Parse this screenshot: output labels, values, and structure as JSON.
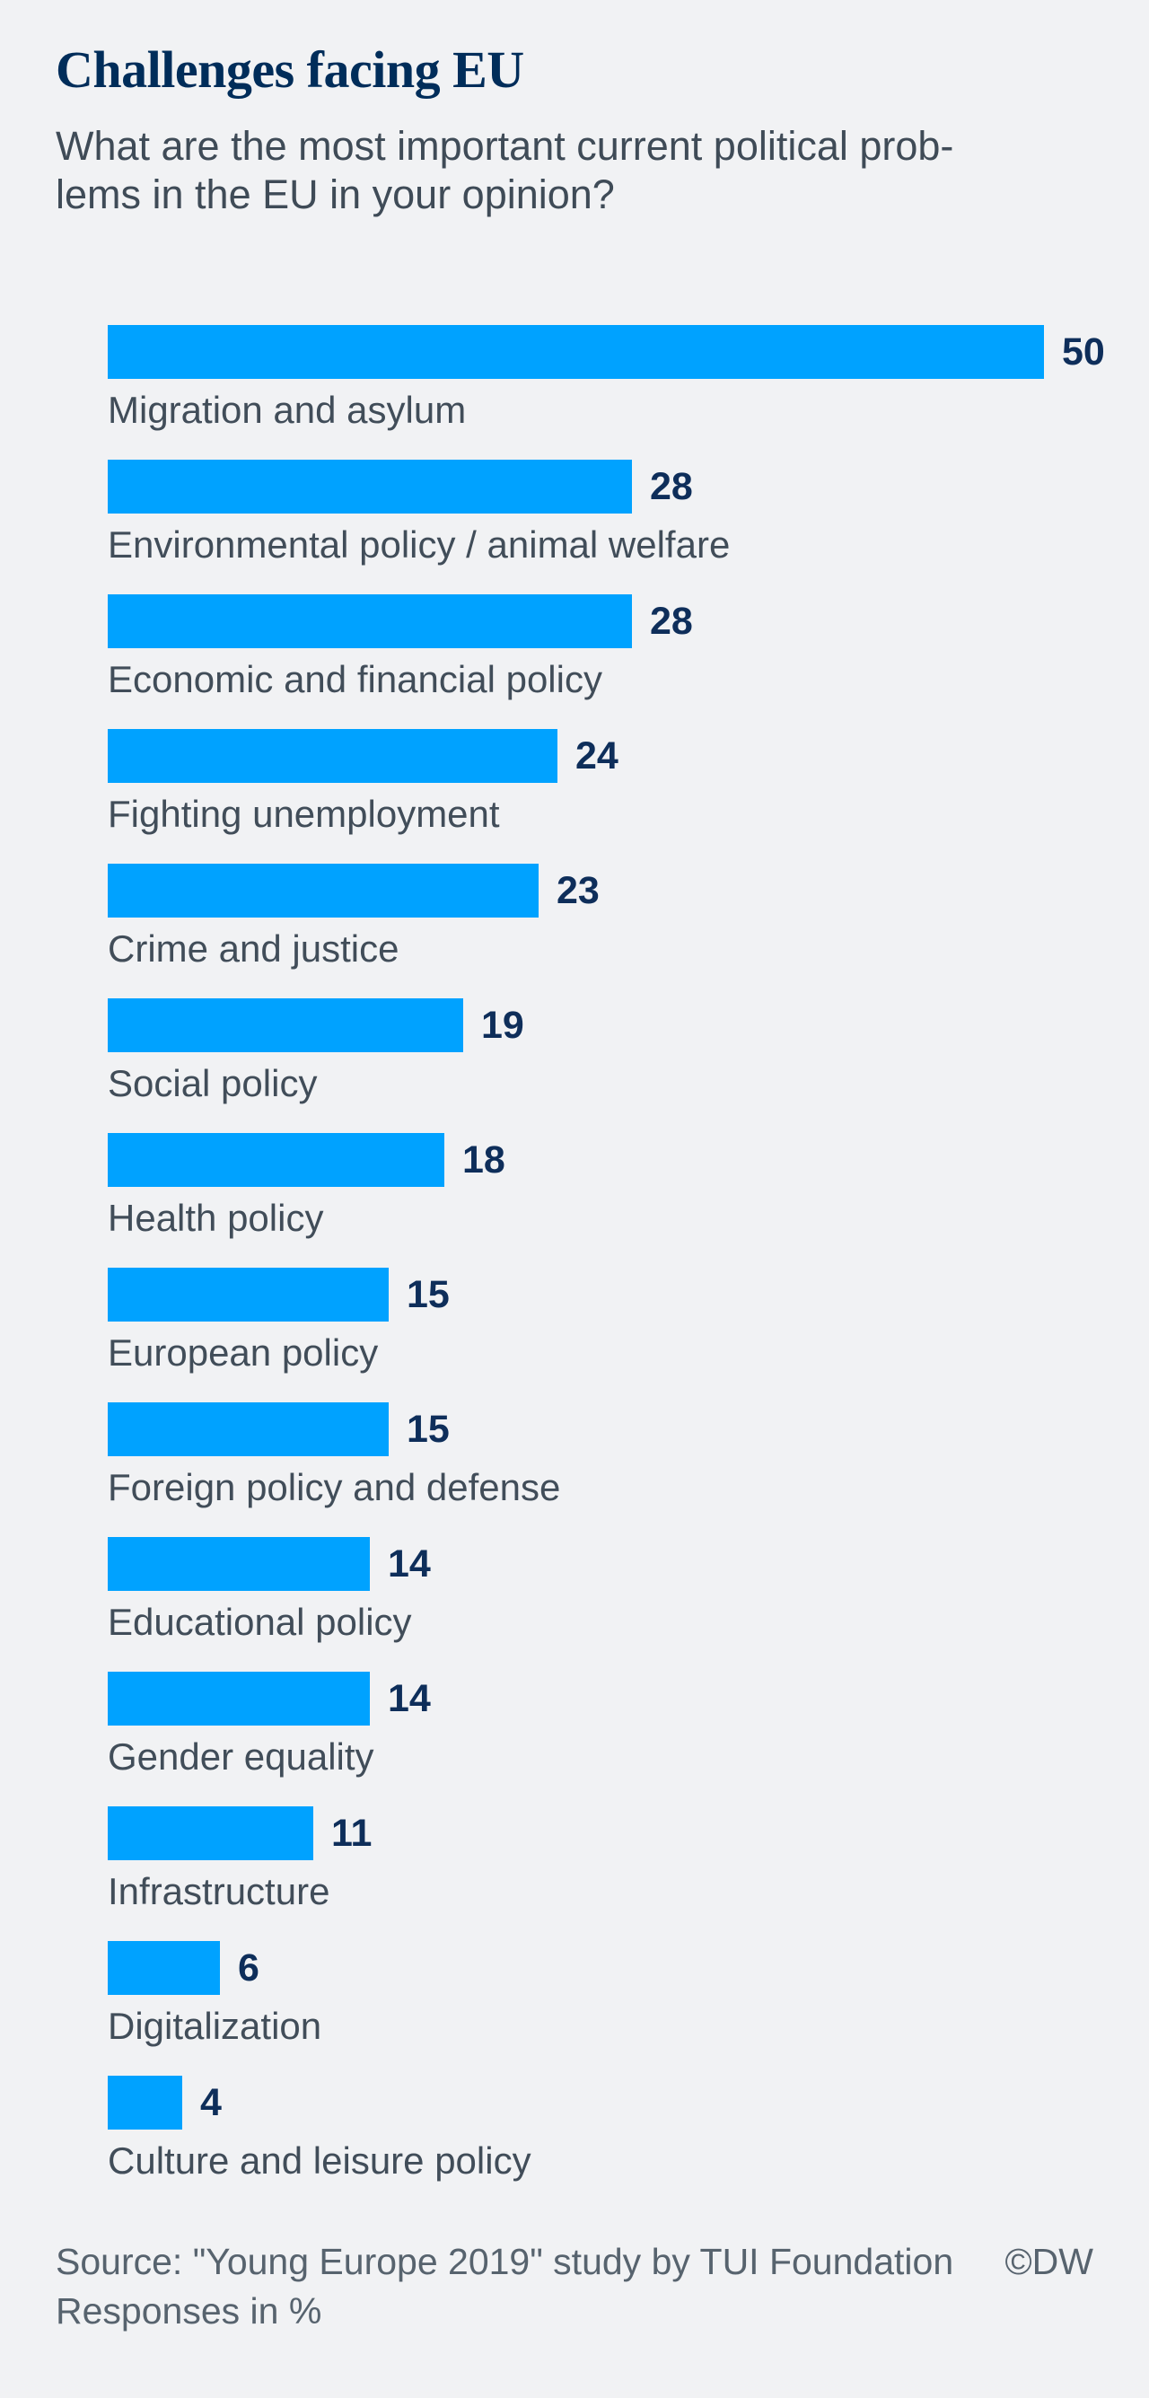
{
  "header": {
    "title": "Challenges facing EU",
    "subtitle_lines": {
      "line1": "What are the most important current political prob-",
      "line2": "lems in the EU in your opinion?"
    }
  },
  "chart_data": {
    "type": "bar",
    "orientation": "horizontal",
    "categories": [
      "Migration and asylum",
      "Environmental policy / animal welfare",
      "Economic and financial policy",
      "Fighting unemployment",
      "Crime and justice",
      "Social policy",
      "Health policy",
      "European policy",
      "Foreign policy and defense",
      "Educational policy",
      "Gender equality",
      "Infrastructure",
      "Digitalization",
      "Culture and leisure policy"
    ],
    "values": [
      50,
      28,
      28,
      24,
      23,
      19,
      18,
      15,
      15,
      14,
      14,
      11,
      6,
      4
    ],
    "xlim": [
      0,
      50
    ],
    "value_labels_shown": true,
    "grid": false,
    "legend": "none",
    "units": "Responses in %"
  },
  "footer": {
    "source": "Source: \"Young Europe 2019\" study by TUI Foundation",
    "copyright": "©DW",
    "note": "Responses in %"
  },
  "colors": {
    "background": "#f1f2f4",
    "bar": "#00a2ff",
    "title_navy": "#002d5a",
    "value_navy": "#0e2e5a",
    "label_gray": "#414d59",
    "footer_gray": "#57636e"
  }
}
